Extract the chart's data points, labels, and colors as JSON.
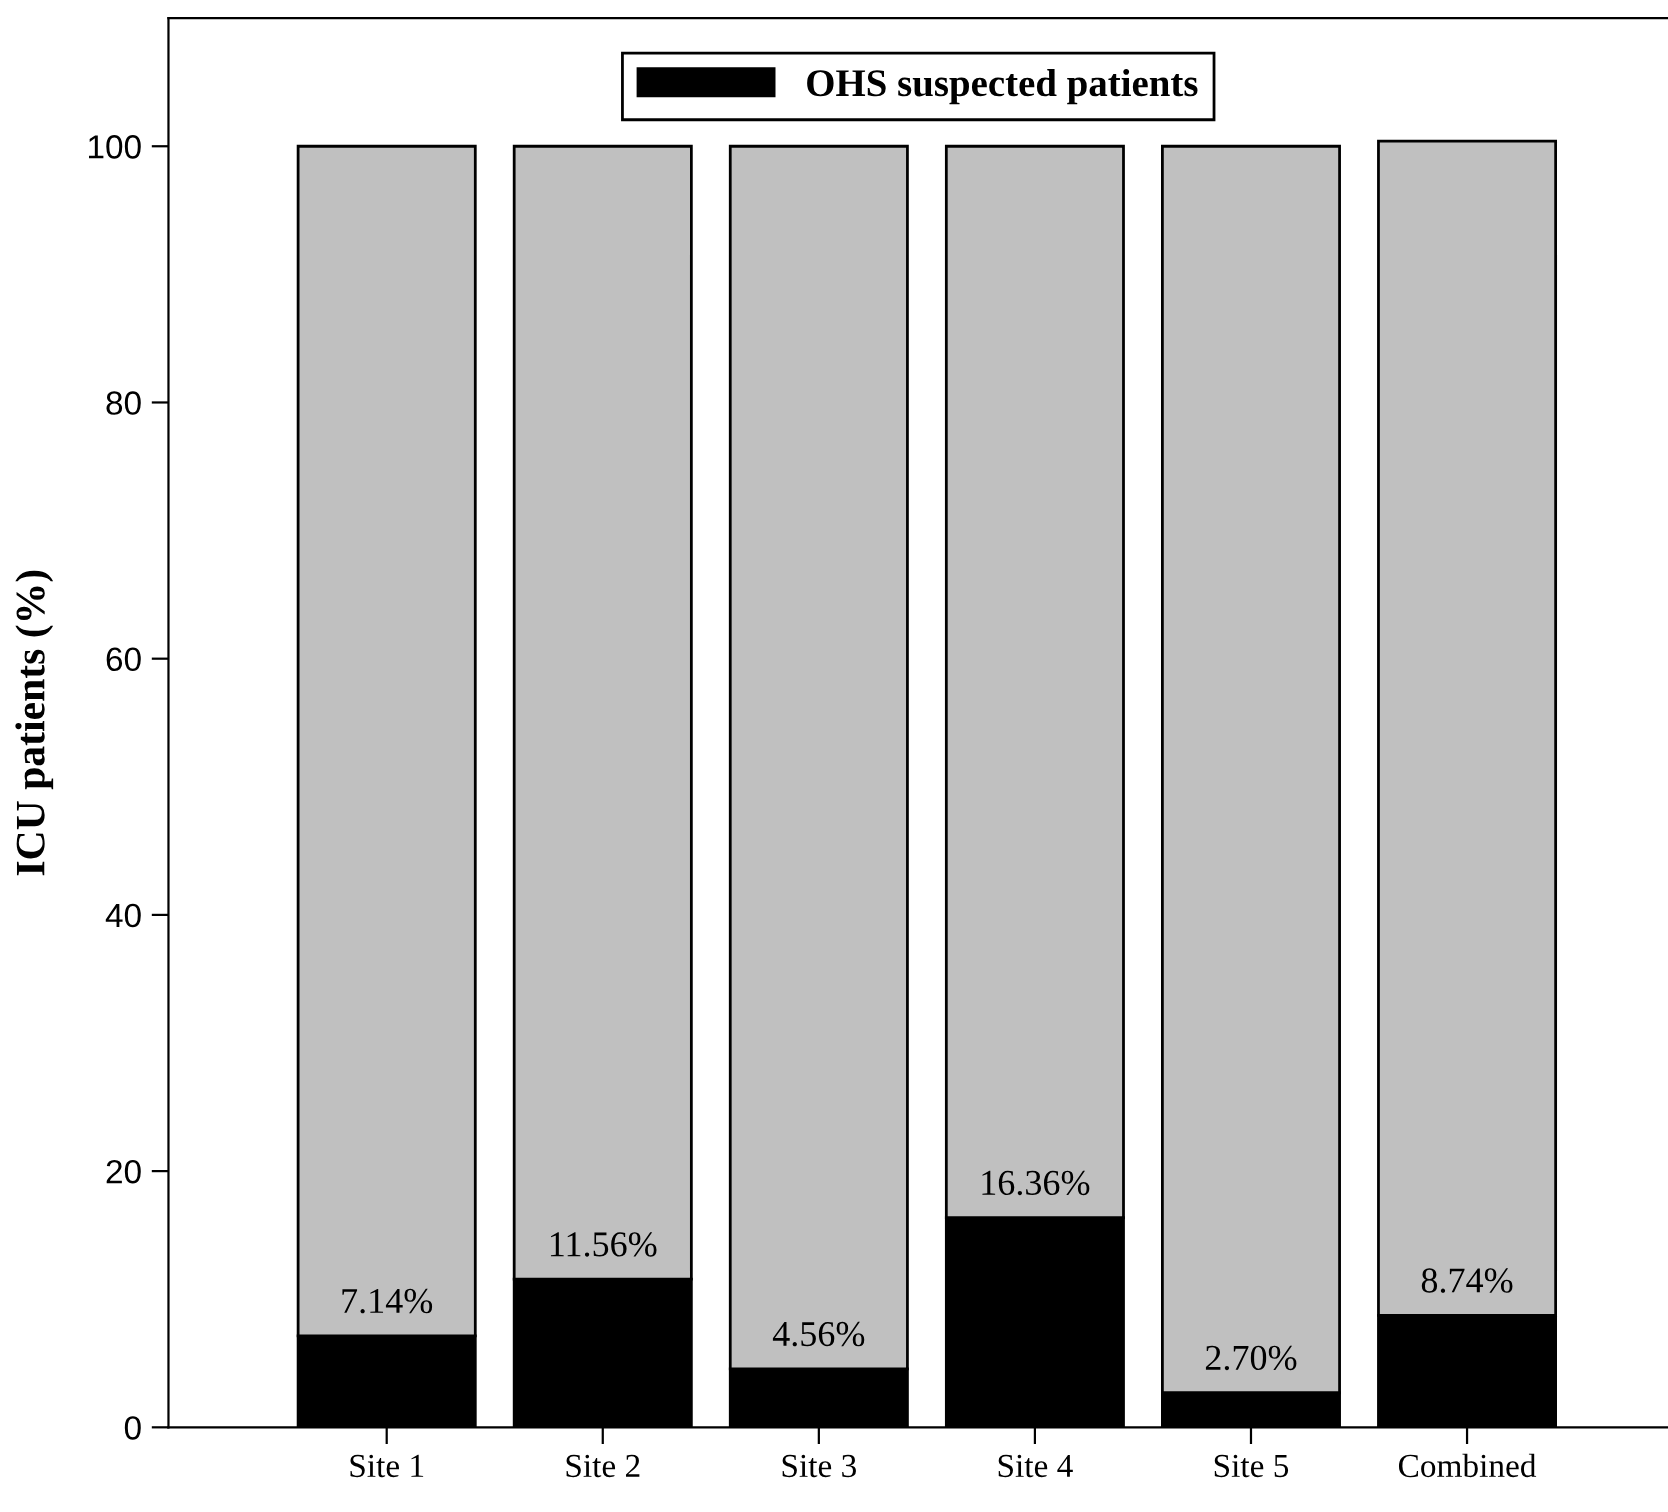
{
  "chart_data": {
    "type": "bar",
    "stacked": true,
    "ylabel": "ICU patients (%)",
    "categories": [
      "Site 1",
      "Site 2",
      "Site 3",
      "Site 4",
      "Site 5",
      "Combined"
    ],
    "series": [
      {
        "name": "OHS suspected patients",
        "color": "#000000",
        "values": [
          7.14,
          11.56,
          4.56,
          16.36,
          2.7,
          8.74
        ],
        "value_labels": [
          "7.14%",
          "11.56%",
          "4.56%",
          "16.36%",
          "2.70%",
          "8.74%"
        ]
      },
      {
        "color": "#c0c0c0",
        "values": [
          92.86,
          88.44,
          95.44,
          83.64,
          97.3,
          91.66
        ]
      }
    ],
    "ylim": [
      0,
      110
    ],
    "yticks": [
      0,
      20,
      40,
      60,
      80,
      100
    ],
    "grid": false,
    "legend": "top"
  }
}
